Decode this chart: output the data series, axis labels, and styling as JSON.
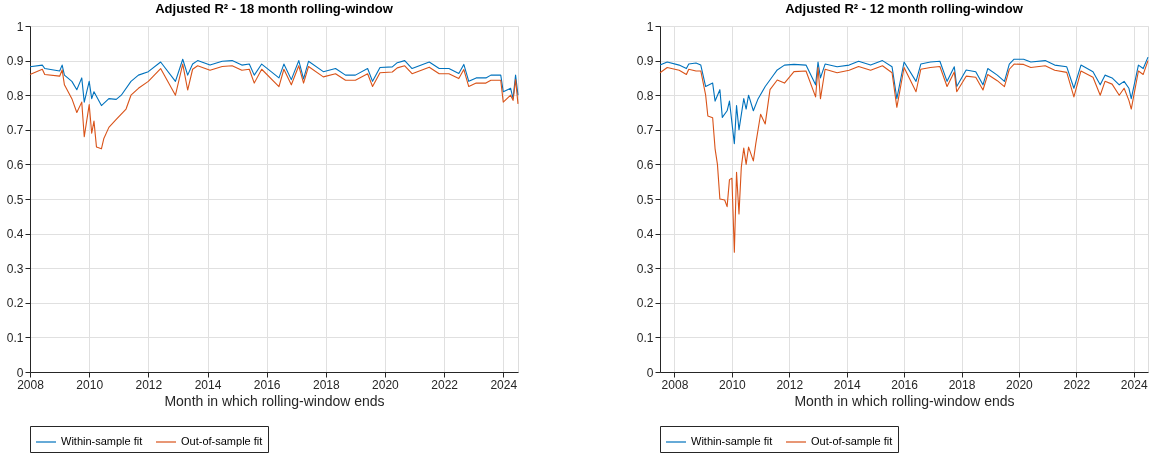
{
  "chart_data": [
    {
      "type": "line",
      "title": "Adjusted R² - 18 month rolling-window",
      "xlabel": "Month in which rolling-window ends",
      "xlim": [
        "2008-01",
        "2024-07"
      ],
      "xticks": [
        "2008",
        "2010",
        "2012",
        "2014",
        "2016",
        "2018",
        "2020",
        "2022",
        "2024"
      ],
      "ylim": [
        0,
        1
      ],
      "yticks": [
        0,
        0.1,
        0.2,
        0.3,
        0.4,
        0.5,
        0.6,
        0.7,
        0.8,
        0.9,
        1
      ],
      "grid": true,
      "legend": "bottom",
      "line_style": "solid",
      "series": [
        {
          "name": "Within-sample fit",
          "color": "#0072bd",
          "x": [
            "2008-01",
            "2008-06",
            "2008-07",
            "2009-01",
            "2009-02",
            "2009-03",
            "2009-06",
            "2009-08",
            "2009-10",
            "2009-11",
            "2010-01",
            "2010-02",
            "2010-03",
            "2010-06",
            "2010-09",
            "2010-12",
            "2011-02",
            "2011-06",
            "2011-09",
            "2012-01",
            "2012-06",
            "2012-12",
            "2013-03",
            "2013-05",
            "2013-07",
            "2013-09",
            "2014-02",
            "2014-07",
            "2014-11",
            "2015-03",
            "2015-06",
            "2015-08",
            "2015-11",
            "2016-06",
            "2016-08",
            "2016-11",
            "2017-02",
            "2017-04",
            "2017-06",
            "2017-12",
            "2018-05",
            "2018-09",
            "2019-01",
            "2019-06",
            "2019-08",
            "2019-11",
            "2020-04",
            "2020-06",
            "2020-09",
            "2020-12",
            "2021-07",
            "2021-11",
            "2022-03",
            "2022-07",
            "2022-09",
            "2022-11",
            "2023-02",
            "2023-06",
            "2023-08",
            "2023-12",
            "2024-01",
            "2024-04",
            "2024-05",
            "2024-06",
            "2024-07"
          ],
          "values": [
            0.882,
            0.887,
            0.877,
            0.87,
            0.887,
            0.858,
            0.84,
            0.816,
            0.85,
            0.78,
            0.84,
            0.79,
            0.81,
            0.77,
            0.79,
            0.788,
            0.8,
            0.84,
            0.858,
            0.868,
            0.896,
            0.84,
            0.904,
            0.858,
            0.89,
            0.9,
            0.887,
            0.898,
            0.9,
            0.887,
            0.89,
            0.858,
            0.89,
            0.85,
            0.89,
            0.845,
            0.9,
            0.847,
            0.898,
            0.868,
            0.877,
            0.858,
            0.858,
            0.877,
            0.84,
            0.88,
            0.882,
            0.894,
            0.9,
            0.877,
            0.896,
            0.877,
            0.877,
            0.863,
            0.889,
            0.84,
            0.85,
            0.85,
            0.858,
            0.858,
            0.81,
            0.82,
            0.79,
            0.858,
            0.8
          ]
        },
        {
          "name": "Out-of-sample fit",
          "color": "#d95319",
          "x": [
            "2008-01",
            "2008-06",
            "2008-07",
            "2009-01",
            "2009-02",
            "2009-03",
            "2009-06",
            "2009-08",
            "2009-10",
            "2009-11",
            "2010-01",
            "2010-02",
            "2010-03",
            "2010-04",
            "2010-06",
            "2010-07",
            "2010-09",
            "2010-12",
            "2011-04",
            "2011-06",
            "2011-09",
            "2012-01",
            "2012-06",
            "2012-12",
            "2013-03",
            "2013-05",
            "2013-07",
            "2013-09",
            "2014-02",
            "2014-07",
            "2014-11",
            "2015-03",
            "2015-06",
            "2015-08",
            "2015-11",
            "2016-06",
            "2016-08",
            "2016-11",
            "2017-02",
            "2017-04",
            "2017-06",
            "2017-12",
            "2018-05",
            "2018-09",
            "2019-01",
            "2019-06",
            "2019-08",
            "2019-11",
            "2020-04",
            "2020-06",
            "2020-09",
            "2020-12",
            "2021-07",
            "2021-11",
            "2022-03",
            "2022-07",
            "2022-09",
            "2022-11",
            "2023-02",
            "2023-06",
            "2023-08",
            "2023-12",
            "2024-01",
            "2024-04",
            "2024-05",
            "2024-06",
            "2024-07"
          ],
          "values": [
            0.86,
            0.875,
            0.86,
            0.855,
            0.873,
            0.83,
            0.79,
            0.75,
            0.78,
            0.68,
            0.773,
            0.69,
            0.725,
            0.65,
            0.645,
            0.675,
            0.707,
            0.73,
            0.76,
            0.8,
            0.82,
            0.84,
            0.877,
            0.8,
            0.89,
            0.815,
            0.875,
            0.885,
            0.872,
            0.883,
            0.885,
            0.872,
            0.875,
            0.835,
            0.875,
            0.825,
            0.875,
            0.83,
            0.885,
            0.835,
            0.883,
            0.853,
            0.862,
            0.843,
            0.843,
            0.862,
            0.825,
            0.865,
            0.867,
            0.879,
            0.885,
            0.862,
            0.881,
            0.862,
            0.862,
            0.848,
            0.874,
            0.825,
            0.835,
            0.835,
            0.843,
            0.843,
            0.78,
            0.8,
            0.785,
            0.845,
            0.775
          ]
        }
      ]
    },
    {
      "type": "line",
      "title": "Adjusted R² - 12 month rolling-window",
      "xlabel": "Month in which rolling-window ends",
      "xlim": [
        "2007-07",
        "2024-07"
      ],
      "xticks": [
        "2008",
        "2010",
        "2012",
        "2014",
        "2016",
        "2018",
        "2020",
        "2022",
        "2024"
      ],
      "ylim": [
        0,
        1
      ],
      "yticks": [
        0,
        0.1,
        0.2,
        0.3,
        0.4,
        0.5,
        0.6,
        0.7,
        0.8,
        0.9,
        1
      ],
      "grid": true,
      "legend": "bottom",
      "line_style": "solid",
      "series": [
        {
          "name": "Within-sample fit",
          "color": "#0072bd",
          "x": [
            "2007-07",
            "2007-10",
            "2008-03",
            "2008-06",
            "2008-07",
            "2008-10",
            "2008-12",
            "2009-02",
            "2009-05",
            "2009-06",
            "2009-08",
            "2009-09",
            "2009-11",
            "2009-12",
            "2010-02",
            "2010-03",
            "2010-04",
            "2010-06",
            "2010-07",
            "2010-08",
            "2010-10",
            "2010-12",
            "2011-03",
            "2011-06",
            "2011-08",
            "2011-11",
            "2012-03",
            "2012-08",
            "2012-12",
            "2013-01",
            "2013-02",
            "2013-04",
            "2013-09",
            "2014-02",
            "2014-06",
            "2014-11",
            "2015-04",
            "2015-08",
            "2015-10",
            "2016-01",
            "2016-06",
            "2016-08",
            "2016-12",
            "2017-04",
            "2017-07",
            "2017-10",
            "2017-11",
            "2018-03",
            "2018-07",
            "2018-10",
            "2018-12",
            "2019-04",
            "2019-07",
            "2019-09",
            "2019-11",
            "2020-03",
            "2020-06",
            "2020-12",
            "2021-04",
            "2021-09",
            "2021-12",
            "2022-03",
            "2022-08",
            "2022-11",
            "2023-01",
            "2023-04",
            "2023-07",
            "2023-09",
            "2023-11",
            "2023-12",
            "2024-03",
            "2024-05",
            "2024-07"
          ],
          "values": [
            0.887,
            0.896,
            0.887,
            0.877,
            0.89,
            0.893,
            0.887,
            0.825,
            0.835,
            0.783,
            0.816,
            0.736,
            0.755,
            0.783,
            0.66,
            0.77,
            0.7,
            0.79,
            0.76,
            0.8,
            0.755,
            0.79,
            0.825,
            0.854,
            0.873,
            0.887,
            0.889,
            0.887,
            0.83,
            0.896,
            0.85,
            0.89,
            0.882,
            0.887,
            0.898,
            0.887,
            0.9,
            0.882,
            0.79,
            0.896,
            0.84,
            0.89,
            0.896,
            0.898,
            0.84,
            0.882,
            0.825,
            0.873,
            0.868,
            0.83,
            0.877,
            0.858,
            0.84,
            0.89,
            0.904,
            0.904,
            0.896,
            0.9,
            0.887,
            0.882,
            0.82,
            0.887,
            0.868,
            0.83,
            0.858,
            0.85,
            0.83,
            0.84,
            0.82,
            0.79,
            0.887,
            0.877,
            0.91
          ]
        },
        {
          "name": "Out-of-sample fit",
          "color": "#d95319",
          "x": [
            "2007-07",
            "2007-10",
            "2008-03",
            "2008-06",
            "2008-07",
            "2008-10",
            "2008-12",
            "2009-02",
            "2009-03",
            "2009-05",
            "2009-06",
            "2009-07",
            "2009-08",
            "2009-10",
            "2009-11",
            "2009-12",
            "2010-01",
            "2010-02",
            "2010-03",
            "2010-04",
            "2010-05",
            "2010-06",
            "2010-07",
            "2010-08",
            "2010-10",
            "2010-11",
            "2011-01",
            "2011-03",
            "2011-05",
            "2011-08",
            "2011-11",
            "2012-03",
            "2012-08",
            "2012-12",
            "2013-01",
            "2013-02",
            "2013-04",
            "2013-09",
            "2014-02",
            "2014-06",
            "2014-11",
            "2015-04",
            "2015-08",
            "2015-10",
            "2016-01",
            "2016-06",
            "2016-08",
            "2016-12",
            "2017-04",
            "2017-07",
            "2017-10",
            "2017-11",
            "2018-03",
            "2018-07",
            "2018-10",
            "2018-12",
            "2019-04",
            "2019-07",
            "2019-09",
            "2019-11",
            "2020-03",
            "2020-06",
            "2020-12",
            "2021-04",
            "2021-09",
            "2021-12",
            "2022-03",
            "2022-08",
            "2022-11",
            "2023-01",
            "2023-04",
            "2023-07",
            "2023-09",
            "2023-11",
            "2023-12",
            "2024-03",
            "2024-05",
            "2024-07"
          ],
          "values": [
            0.865,
            0.88,
            0.872,
            0.86,
            0.875,
            0.87,
            0.87,
            0.8,
            0.74,
            0.735,
            0.645,
            0.6,
            0.5,
            0.497,
            0.478,
            0.556,
            0.56,
            0.346,
            0.577,
            0.457,
            0.593,
            0.647,
            0.6,
            0.65,
            0.61,
            0.66,
            0.745,
            0.717,
            0.816,
            0.844,
            0.835,
            0.868,
            0.87,
            0.795,
            0.88,
            0.79,
            0.875,
            0.865,
            0.872,
            0.883,
            0.872,
            0.885,
            0.865,
            0.765,
            0.88,
            0.81,
            0.875,
            0.88,
            0.883,
            0.825,
            0.867,
            0.81,
            0.855,
            0.852,
            0.815,
            0.86,
            0.842,
            0.825,
            0.875,
            0.89,
            0.889,
            0.88,
            0.885,
            0.872,
            0.866,
            0.795,
            0.87,
            0.852,
            0.8,
            0.84,
            0.832,
            0.8,
            0.82,
            0.785,
            0.76,
            0.87,
            0.86,
            0.9
          ]
        }
      ]
    }
  ]
}
